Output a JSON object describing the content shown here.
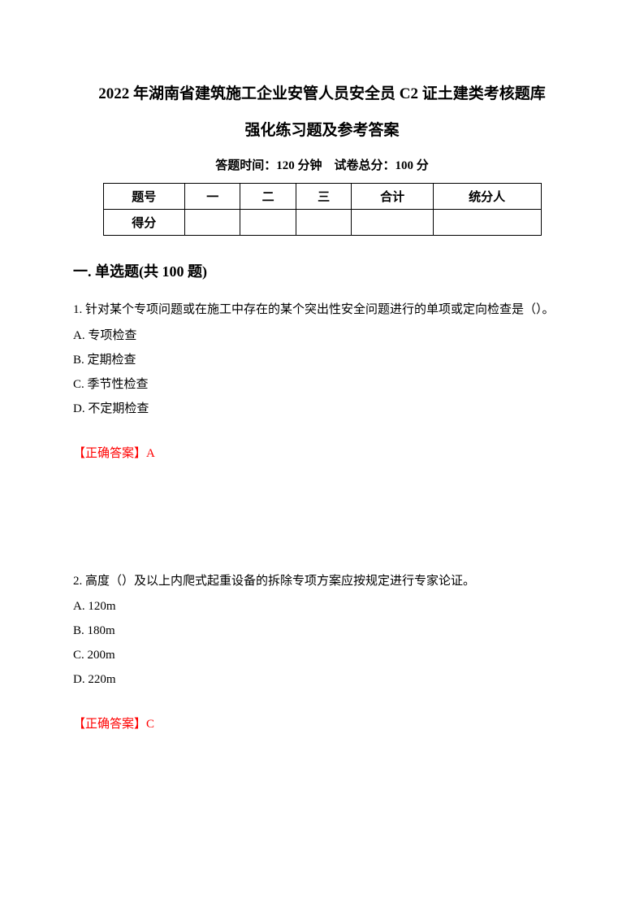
{
  "title": {
    "line1": "2022 年湖南省建筑施工企业安管人员安全员 C2 证土建类考核题库",
    "line2": "强化练习题及参考答案"
  },
  "exam_info": "答题时间：120 分钟 试卷总分：100 分",
  "score_table": {
    "headers": {
      "col0": "题号",
      "col1": "一",
      "col2": "二",
      "col3": "三",
      "col4": "合计",
      "col5": "统分人"
    },
    "row_label": "得分"
  },
  "section": {
    "title": "一. 单选题(共 100 题)"
  },
  "questions": [
    {
      "text": "1. 针对某个专项问题或在施工中存在的某个突出性安全问题进行的单项或定向检查是（）。",
      "options": {
        "a": "A. 专项检查",
        "b": "B. 定期检查",
        "c": "C. 季节性检查",
        "d": "D. 不定期检查"
      },
      "answer": "【正确答案】A"
    },
    {
      "text": "2. 高度（）及以上内爬式起重设备的拆除专项方案应按规定进行专家论证。",
      "options": {
        "a": "A. 120m",
        "b": "B. 180m",
        "c": "C. 200m",
        "d": "D. 220m"
      },
      "answer": "【正确答案】C"
    }
  ],
  "colors": {
    "text": "#000000",
    "answer": "#ff0000",
    "background": "#ffffff",
    "border": "#000000"
  }
}
